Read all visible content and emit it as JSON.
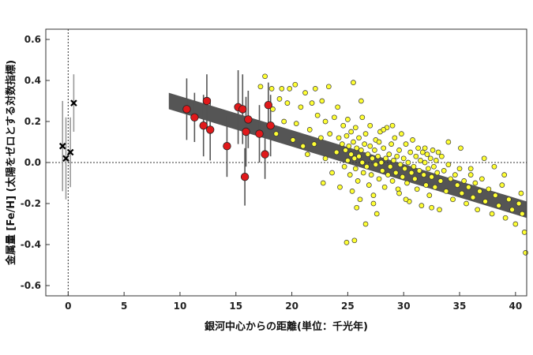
{
  "chart_data": {
    "type": "scatter",
    "xlabel": "銀河中心からの距離(単位：千光年)",
    "ylabel": "金属量 [Fe/H] (太陽をゼロとする対数指標)",
    "xlim": [
      -2,
      41
    ],
    "ylim": [
      -0.65,
      0.65
    ],
    "x_ticks": [
      0,
      5,
      10,
      15,
      20,
      25,
      30,
      35,
      40
    ],
    "y_ticks": [
      0.6,
      0.4,
      0.2,
      0.0,
      -0.2,
      -0.4,
      -0.6
    ],
    "x_tick_labels": [
      "0",
      "5",
      "10",
      "15",
      "20",
      "25",
      "30",
      "35",
      "40"
    ],
    "y_tick_labels": [
      "0.6",
      "0.4",
      "0.2",
      "0.0",
      "-0.2",
      "-0.4",
      "-0.6"
    ],
    "grid": false,
    "reference_lines": [
      {
        "axis": "x",
        "value": 0
      },
      {
        "axis": "y",
        "value": 0.0
      }
    ],
    "trend_band": {
      "x_start": 9.0,
      "y_start": 0.3,
      "x_end": 41.0,
      "y_end": -0.23,
      "half_width": 0.04
    },
    "colors": {
      "red_points": "#e0191b",
      "yellow_points": "#ffff33",
      "band": "#555555",
      "cross": "#000000",
      "error_bar": "#555555",
      "cross_error_bar": "#999999"
    },
    "series": [
      {
        "marker": "x",
        "points": [
          {
            "x": -0.5,
            "y": 0.08,
            "err": 0.22
          },
          {
            "x": -0.2,
            "y": 0.02,
            "err": 0.2
          },
          {
            "x": 0.2,
            "y": 0.05,
            "err": 0.17
          },
          {
            "x": 0.5,
            "y": 0.29,
            "err": 0.14
          }
        ]
      },
      {
        "marker": "circle-red",
        "points": [
          {
            "x": 10.6,
            "y": 0.26,
            "err": 0.15
          },
          {
            "x": 11.3,
            "y": 0.22,
            "err": 0.12
          },
          {
            "x": 12.1,
            "y": 0.18,
            "err": 0.15
          },
          {
            "x": 12.4,
            "y": 0.3,
            "err": 0.13
          },
          {
            "x": 12.7,
            "y": 0.16,
            "err": 0.15
          },
          {
            "x": 14.2,
            "y": 0.08,
            "err": 0.15
          },
          {
            "x": 15.2,
            "y": 0.27,
            "err": 0.18
          },
          {
            "x": 15.6,
            "y": 0.26,
            "err": 0.17
          },
          {
            "x": 15.9,
            "y": 0.15,
            "err": 0.17
          },
          {
            "x": 16.1,
            "y": 0.21,
            "err": 0.14
          },
          {
            "x": 15.8,
            "y": -0.07,
            "err": 0.14
          },
          {
            "x": 17.1,
            "y": 0.14,
            "err": 0.14
          },
          {
            "x": 17.6,
            "y": 0.04,
            "err": 0.12
          },
          {
            "x": 17.9,
            "y": 0.28,
            "err": 0.11
          },
          {
            "x": 18.1,
            "y": 0.18,
            "err": 0.15
          }
        ]
      },
      {
        "marker": "circle-yellow",
        "points": [
          {
            "x": 17.6,
            "y": 0.42
          },
          {
            "x": 18.3,
            "y": 0.26
          },
          {
            "x": 19.1,
            "y": 0.36
          },
          {
            "x": 19.8,
            "y": 0.36
          },
          {
            "x": 20.3,
            "y": 0.38
          },
          {
            "x": 18.2,
            "y": 0.36
          },
          {
            "x": 17.2,
            "y": 0.37
          },
          {
            "x": 18.9,
            "y": 0.31
          },
          {
            "x": 19.3,
            "y": 0.2
          },
          {
            "x": 18.6,
            "y": 0.14
          },
          {
            "x": 19.6,
            "y": 0.29
          },
          {
            "x": 20.1,
            "y": 0.11
          },
          {
            "x": 20.4,
            "y": 0.19
          },
          {
            "x": 20.8,
            "y": 0.27
          },
          {
            "x": 21.2,
            "y": 0.34
          },
          {
            "x": 21.4,
            "y": 0.04
          },
          {
            "x": 21.6,
            "y": 0.16
          },
          {
            "x": 22.0,
            "y": 0.09
          },
          {
            "x": 22.3,
            "y": 0.23
          },
          {
            "x": 22.1,
            "y": 0.36
          },
          {
            "x": 22.7,
            "y": 0.3
          },
          {
            "x": 23.0,
            "y": 0.02
          },
          {
            "x": 23.3,
            "y": 0.37
          },
          {
            "x": 23.4,
            "y": 0.14
          },
          {
            "x": 23.6,
            "y": -0.05
          },
          {
            "x": 22.6,
            "y": 0.12
          },
          {
            "x": 21.8,
            "y": 0.29
          },
          {
            "x": 23.8,
            "y": 0.22
          },
          {
            "x": 24.0,
            "y": 0.05
          },
          {
            "x": 24.2,
            "y": 0.12
          },
          {
            "x": 24.3,
            "y": -0.12
          },
          {
            "x": 24.5,
            "y": 0.09
          },
          {
            "x": 24.6,
            "y": 0.18
          },
          {
            "x": 24.7,
            "y": -0.02
          },
          {
            "x": 24.8,
            "y": 0.06
          },
          {
            "x": 24.9,
            "y": 0.13
          },
          {
            "x": 25.0,
            "y": 0.01
          },
          {
            "x": 25.0,
            "y": 0.21
          },
          {
            "x": 25.1,
            "y": 0.08
          },
          {
            "x": 25.2,
            "y": -0.06
          },
          {
            "x": 25.3,
            "y": 0.04
          },
          {
            "x": 25.3,
            "y": 0.15
          },
          {
            "x": 25.4,
            "y": -0.14
          },
          {
            "x": 25.5,
            "y": 0.1
          },
          {
            "x": 25.5,
            "y": 0.39
          },
          {
            "x": 25.6,
            "y": 0.02
          },
          {
            "x": 25.7,
            "y": -0.03
          },
          {
            "x": 25.7,
            "y": 0.17
          },
          {
            "x": 25.8,
            "y": 0.07
          },
          {
            "x": 25.9,
            "y": -0.09
          },
          {
            "x": 26.0,
            "y": 0.03
          },
          {
            "x": 26.0,
            "y": 0.12
          },
          {
            "x": 26.1,
            "y": -0.18
          },
          {
            "x": 26.2,
            "y": 0.06
          },
          {
            "x": 26.3,
            "y": 0.0
          },
          {
            "x": 26.3,
            "y": 0.22
          },
          {
            "x": 26.4,
            "y": -0.05
          },
          {
            "x": 26.5,
            "y": 0.09
          },
          {
            "x": 26.6,
            "y": 0.14
          },
          {
            "x": 26.7,
            "y": -0.02
          },
          {
            "x": 26.8,
            "y": 0.04
          },
          {
            "x": 26.9,
            "y": -0.11
          },
          {
            "x": 27.0,
            "y": 0.08
          },
          {
            "x": 27.0,
            "y": 0.18
          },
          {
            "x": 27.1,
            "y": -0.06
          },
          {
            "x": 27.2,
            "y": 0.02
          },
          {
            "x": 27.3,
            "y": -0.16
          },
          {
            "x": 27.4,
            "y": 0.06
          },
          {
            "x": 27.5,
            "y": -0.01
          },
          {
            "x": 27.5,
            "y": 0.11
          },
          {
            "x": 27.6,
            "y": -0.25
          },
          {
            "x": 27.7,
            "y": 0.03
          },
          {
            "x": 27.8,
            "y": -0.08
          },
          {
            "x": 27.9,
            "y": 0.15
          },
          {
            "x": 28.0,
            "y": 0.0
          },
          {
            "x": 28.1,
            "y": -0.04
          },
          {
            "x": 28.2,
            "y": 0.07
          },
          {
            "x": 28.3,
            "y": -0.12
          },
          {
            "x": 28.4,
            "y": 0.02
          },
          {
            "x": 28.5,
            "y": 0.17
          },
          {
            "x": 28.6,
            "y": -0.06
          },
          {
            "x": 28.7,
            "y": 0.04
          },
          {
            "x": 28.8,
            "y": -0.02
          },
          {
            "x": 28.9,
            "y": 0.09
          },
          {
            "x": 29.0,
            "y": -0.09
          },
          {
            "x": 29.1,
            "y": 0.01
          },
          {
            "x": 29.2,
            "y": 0.12
          },
          {
            "x": 29.3,
            "y": -0.05
          },
          {
            "x": 29.4,
            "y": 0.03
          },
          {
            "x": 29.5,
            "y": -0.13
          },
          {
            "x": 29.6,
            "y": 0.06
          },
          {
            "x": 29.7,
            "y": -0.01
          },
          {
            "x": 29.8,
            "y": 0.14
          },
          {
            "x": 29.9,
            "y": -0.07
          },
          {
            "x": 30.0,
            "y": 0.02
          },
          {
            "x": 30.1,
            "y": -0.03
          },
          {
            "x": 30.2,
            "y": 0.09
          },
          {
            "x": 30.3,
            "y": -0.1
          },
          {
            "x": 30.4,
            "y": 0.0
          },
          {
            "x": 30.5,
            "y": -0.19
          },
          {
            "x": 30.6,
            "y": 0.05
          },
          {
            "x": 30.7,
            "y": -0.05
          },
          {
            "x": 30.8,
            "y": 0.11
          },
          {
            "x": 30.9,
            "y": -0.02
          },
          {
            "x": 31.0,
            "y": -0.08
          },
          {
            "x": 31.1,
            "y": 0.03
          },
          {
            "x": 31.2,
            "y": -0.13
          },
          {
            "x": 31.3,
            "y": 0.07
          },
          {
            "x": 31.4,
            "y": -0.04
          },
          {
            "x": 31.5,
            "y": 0.01
          },
          {
            "x": 31.6,
            "y": -0.21
          },
          {
            "x": 31.7,
            "y": 0.05
          },
          {
            "x": 31.8,
            "y": -0.06
          },
          {
            "x": 31.9,
            "y": 0.0
          },
          {
            "x": 32.0,
            "y": -0.11
          },
          {
            "x": 32.1,
            "y": 0.04
          },
          {
            "x": 32.2,
            "y": -0.03
          },
          {
            "x": 32.3,
            "y": -0.16
          },
          {
            "x": 32.4,
            "y": 0.02
          },
          {
            "x": 32.5,
            "y": -0.07
          },
          {
            "x": 32.6,
            "y": 0.06
          },
          {
            "x": 32.7,
            "y": -0.02
          },
          {
            "x": 32.8,
            "y": -0.12
          },
          {
            "x": 32.9,
            "y": 0.01
          },
          {
            "x": 33.0,
            "y": -0.05
          },
          {
            "x": 33.2,
            "y": -0.23
          },
          {
            "x": 33.3,
            "y": -0.09
          },
          {
            "x": 33.4,
            "y": 0.03
          },
          {
            "x": 33.6,
            "y": -0.04
          },
          {
            "x": 33.8,
            "y": -0.14
          },
          {
            "x": 34.0,
            "y": -0.01
          },
          {
            "x": 34.2,
            "y": -0.08
          },
          {
            "x": 34.4,
            "y": -0.18
          },
          {
            "x": 34.6,
            "y": -0.06
          },
          {
            "x": 34.8,
            "y": -0.11
          },
          {
            "x": 35.0,
            "y": -0.03
          },
          {
            "x": 35.2,
            "y": -0.15
          },
          {
            "x": 35.4,
            "y": -0.09
          },
          {
            "x": 35.6,
            "y": -0.2
          },
          {
            "x": 35.8,
            "y": -0.12
          },
          {
            "x": 36.0,
            "y": -0.06
          },
          {
            "x": 36.2,
            "y": -0.17
          },
          {
            "x": 36.4,
            "y": -0.1
          },
          {
            "x": 36.6,
            "y": -0.23
          },
          {
            "x": 36.8,
            "y": -0.14
          },
          {
            "x": 37.0,
            "y": -0.08
          },
          {
            "x": 37.3,
            "y": -0.19
          },
          {
            "x": 37.6,
            "y": -0.13
          },
          {
            "x": 37.9,
            "y": -0.25
          },
          {
            "x": 38.2,
            "y": -0.16
          },
          {
            "x": 38.5,
            "y": -0.21
          },
          {
            "x": 38.8,
            "y": -0.11
          },
          {
            "x": 39.1,
            "y": -0.27
          },
          {
            "x": 39.4,
            "y": -0.18
          },
          {
            "x": 39.7,
            "y": -0.23
          },
          {
            "x": 40.0,
            "y": -0.3
          },
          {
            "x": 40.3,
            "y": -0.2
          },
          {
            "x": 40.6,
            "y": -0.25
          },
          {
            "x": 40.8,
            "y": -0.34
          },
          {
            "x": 40.9,
            "y": -0.44
          },
          {
            "x": 40.5,
            "y": -0.15
          },
          {
            "x": 39.0,
            "y": -0.06
          },
          {
            "x": 36.0,
            "y": -0.03
          },
          {
            "x": 34.0,
            "y": 0.1
          },
          {
            "x": 29.0,
            "y": 0.18
          },
          {
            "x": 28.2,
            "y": 0.16
          },
          {
            "x": 26.6,
            "y": -0.3
          },
          {
            "x": 25.6,
            "y": -0.38
          },
          {
            "x": 24.9,
            "y": -0.39
          },
          {
            "x": 27.3,
            "y": -0.2
          },
          {
            "x": 23.0,
            "y": 0.2
          },
          {
            "x": 24.1,
            "y": 0.27
          },
          {
            "x": 21.0,
            "y": 0.08
          },
          {
            "x": 22.8,
            "y": -0.1
          },
          {
            "x": 30.2,
            "y": -0.18
          },
          {
            "x": 33.1,
            "y": 0.05
          },
          {
            "x": 35.1,
            "y": 0.07
          },
          {
            "x": 37.2,
            "y": 0.02
          },
          {
            "x": 38.1,
            "y": -0.02
          },
          {
            "x": 31.9,
            "y": 0.07
          },
          {
            "x": 26.2,
            "y": 0.3
          },
          {
            "x": 27.8,
            "y": 0.1
          },
          {
            "x": 25.8,
            "y": -0.22
          },
          {
            "x": 29.6,
            "y": -0.15
          },
          {
            "x": 32.5,
            "y": -0.22
          }
        ]
      }
    ]
  }
}
